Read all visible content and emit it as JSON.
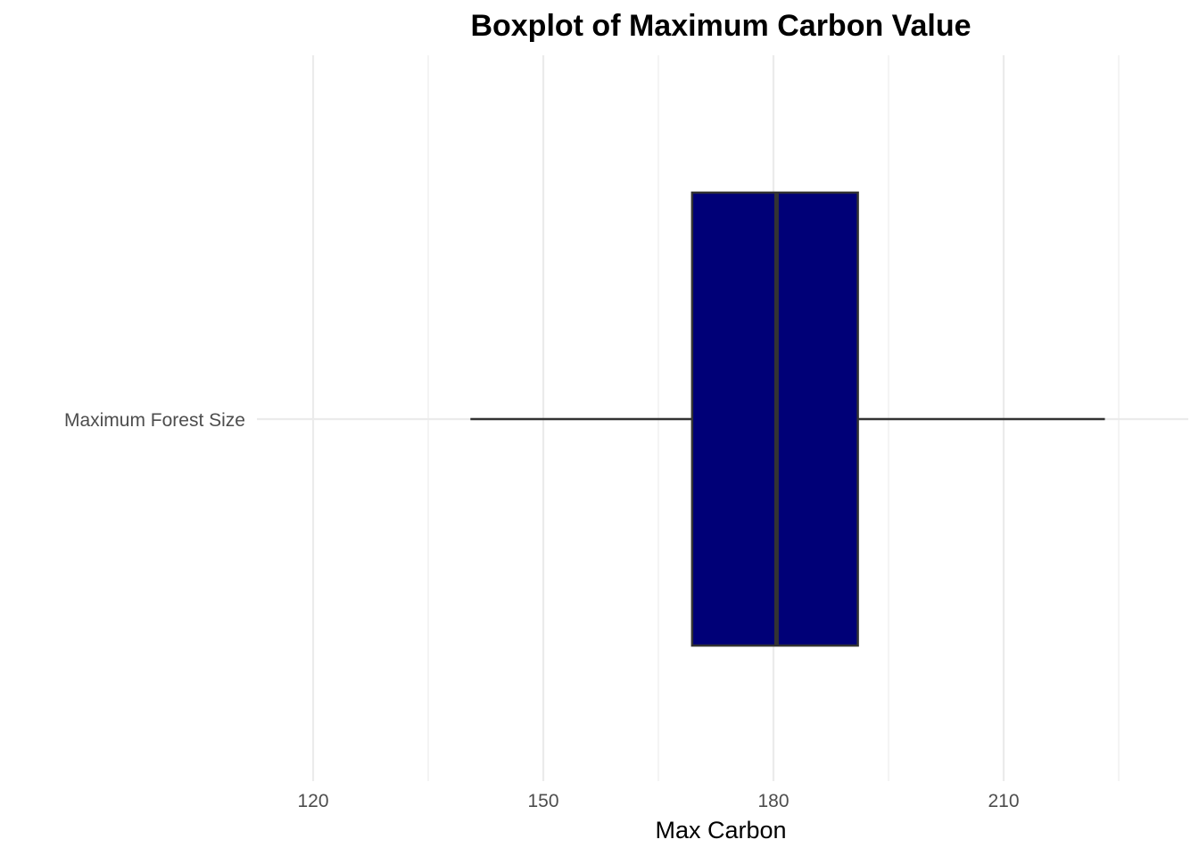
{
  "chart_data": {
    "type": "boxplot",
    "title": "Boxplot of Maximum Carbon Value",
    "xlabel": "Max Carbon",
    "ylabel": "",
    "orientation": "horizontal",
    "xlim": [
      120,
      230
    ],
    "x_ticks": [
      120,
      150,
      180,
      210
    ],
    "x_tick_labels": [
      "120",
      "150",
      "180",
      "210"
    ],
    "x_minor_ticks": [
      135,
      165,
      195,
      225
    ],
    "categories": [
      "Maximum Forest Size"
    ],
    "series": [
      {
        "category": "Maximum Forest Size",
        "whisker_low": 140.5,
        "q1": 169.4,
        "median": 180.4,
        "q3": 191.0,
        "whisker_high": 223.2
      }
    ],
    "grid": true,
    "legend": "none",
    "colors": {
      "box_fill": "#000077",
      "box_outline": "#333333",
      "median_line": "#333333",
      "whisker": "#333333",
      "grid": "#ebebeb"
    }
  }
}
